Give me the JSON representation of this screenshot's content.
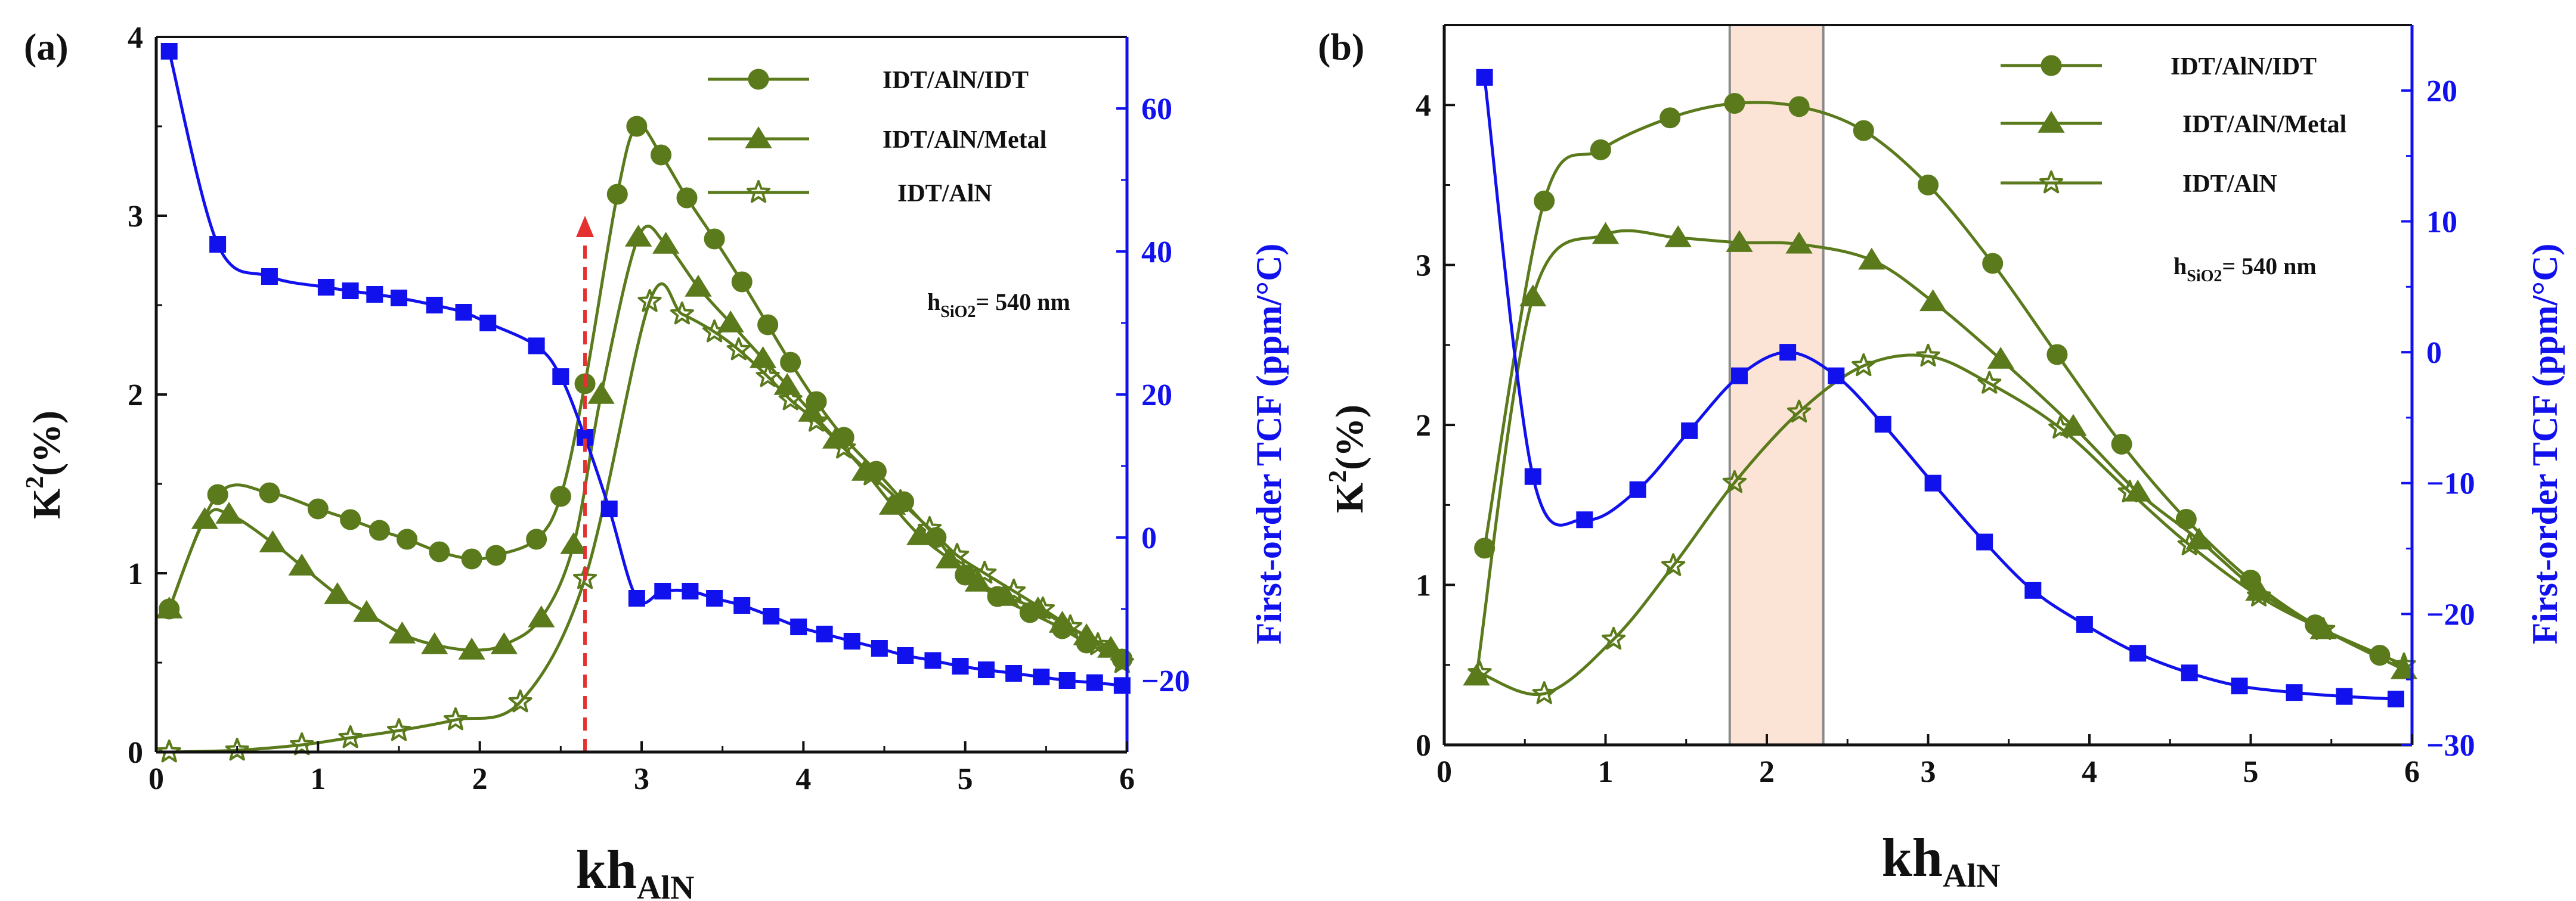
{
  "colors": {
    "green": "#5a7a1c",
    "blue": "#1111ee",
    "axis": "#111111",
    "arrow": "#e53030",
    "band_fill": "#fbe4d6",
    "band_line": "#8a8a8a"
  },
  "chart_data": [
    {
      "type": "line",
      "panel_label": "(a)",
      "xlabel": "kh",
      "xlabel_sub": "AlN",
      "ylabel": "K",
      "ylabel_sup": "2",
      "ylabel_suffix": "(%)",
      "ylabel_right": "First-order TCF (ppm/°C)",
      "xlim": [
        0,
        6
      ],
      "ylim": [
        0,
        4
      ],
      "ylim_right": [
        -30,
        70
      ],
      "x_ticks": [
        0,
        1,
        2,
        3,
        4,
        5,
        6
      ],
      "y_ticks": [
        0,
        1,
        2,
        3,
        4
      ],
      "y_ticks_right": [
        -20,
        0,
        20,
        40,
        60
      ],
      "x_tick_labels": [
        "0",
        "1",
        "2",
        "3",
        "4",
        "5",
        "6"
      ],
      "y_tick_labels": [
        "0",
        "1",
        "2",
        "3",
        "4"
      ],
      "y_tick_labels_right": [
        "−20",
        "0",
        "20",
        "40",
        "60"
      ],
      "annotation": {
        "text": "h",
        "sub": "SiO2",
        "suffix": "= 540 nm"
      },
      "arrow": {
        "x": 2.65,
        "y_from": 0,
        "y_to": 3.0
      },
      "series": [
        {
          "name": "IDT/AlN/IDT",
          "marker": "circle",
          "axis": "left",
          "x": [
            0.08,
            0.38,
            0.7,
            1.0,
            1.2,
            1.38,
            1.55,
            1.75,
            1.95,
            2.1,
            2.35,
            2.5,
            2.65,
            2.85,
            2.97,
            3.12,
            3.28,
            3.45,
            3.62,
            3.78,
            3.92,
            4.08,
            4.25,
            4.45,
            4.62,
            4.82,
            5.0,
            5.2,
            5.4,
            5.6,
            5.75,
            5.97
          ],
          "y": [
            0.8,
            1.44,
            1.45,
            1.36,
            1.3,
            1.24,
            1.19,
            1.12,
            1.08,
            1.1,
            1.19,
            1.43,
            2.06,
            3.12,
            3.5,
            3.34,
            3.1,
            2.87,
            2.63,
            2.39,
            2.18,
            1.96,
            1.76,
            1.57,
            1.4,
            1.2,
            0.99,
            0.87,
            0.78,
            0.69,
            0.61,
            0.52
          ]
        },
        {
          "name": "IDT/AlN/Metal",
          "marker": "triangle",
          "axis": "left",
          "x": [
            0.08,
            0.3,
            0.45,
            0.72,
            0.9,
            1.12,
            1.3,
            1.52,
            1.72,
            1.95,
            2.15,
            2.38,
            2.58,
            2.75,
            2.98,
            3.15,
            3.35,
            3.55,
            3.75,
            3.9,
            4.05,
            4.2,
            4.38,
            4.55,
            4.72,
            4.9,
            5.08,
            5.25,
            5.45,
            5.6,
            5.75,
            5.9
          ],
          "y": [
            0.8,
            1.3,
            1.33,
            1.17,
            1.04,
            0.88,
            0.78,
            0.66,
            0.6,
            0.57,
            0.6,
            0.75,
            1.16,
            2.0,
            2.88,
            2.84,
            2.6,
            2.4,
            2.2,
            2.05,
            1.9,
            1.75,
            1.57,
            1.38,
            1.21,
            1.08,
            0.95,
            0.87,
            0.8,
            0.72,
            0.65,
            0.58
          ]
        },
        {
          "name": "IDT/AlN",
          "marker": "star",
          "axis": "left",
          "x": [
            0.08,
            0.5,
            0.9,
            1.2,
            1.5,
            1.85,
            2.25,
            2.65,
            3.05,
            3.25,
            3.45,
            3.6,
            3.78,
            3.92,
            4.08,
            4.25,
            4.42,
            4.6,
            4.78,
            4.95,
            5.12,
            5.3,
            5.48,
            5.65,
            5.82,
            5.97
          ],
          "y": [
            0.0,
            0.01,
            0.04,
            0.08,
            0.12,
            0.18,
            0.28,
            0.97,
            2.52,
            2.45,
            2.35,
            2.25,
            2.1,
            1.97,
            1.85,
            1.7,
            1.55,
            1.4,
            1.25,
            1.1,
            1.0,
            0.9,
            0.8,
            0.7,
            0.6,
            0.5
          ]
        },
        {
          "name": "First-order TCF",
          "marker": "square",
          "axis": "right",
          "x": [
            0.08,
            0.38,
            0.7,
            1.05,
            1.2,
            1.35,
            1.5,
            1.72,
            1.9,
            2.05,
            2.35,
            2.5,
            2.65,
            2.8,
            2.97,
            3.13,
            3.3,
            3.45,
            3.62,
            3.8,
            3.97,
            4.13,
            4.3,
            4.47,
            4.63,
            4.8,
            4.97,
            5.13,
            5.3,
            5.47,
            5.63,
            5.8,
            5.97
          ],
          "y": [
            68,
            41,
            36.5,
            35,
            34.5,
            34,
            33.5,
            32.5,
            31.5,
            30,
            26.8,
            22.5,
            14,
            4,
            -8.5,
            -7.5,
            -7.5,
            -8.5,
            -9.5,
            -11,
            -12.5,
            -13.5,
            -14.5,
            -15.5,
            -16.5,
            -17.2,
            -18,
            -18.5,
            -19,
            -19.5,
            -20,
            -20.3,
            -20.7
          ]
        }
      ]
    },
    {
      "type": "line",
      "panel_label": "(b)",
      "xlabel": "kh",
      "xlabel_sub": "AlN",
      "ylabel": "K",
      "ylabel_sup": "2",
      "ylabel_suffix": "(%)",
      "ylabel_right": "First-order TCF (ppm/°C)",
      "xlim": [
        0,
        6
      ],
      "ylim": [
        0,
        4.5
      ],
      "ylim_right": [
        -30,
        25
      ],
      "x_ticks": [
        0,
        1,
        2,
        3,
        4,
        5,
        6
      ],
      "y_ticks": [
        0,
        1,
        2,
        3,
        4
      ],
      "y_ticks_right": [
        -30,
        -20,
        -10,
        0,
        10,
        20
      ],
      "x_tick_labels": [
        "0",
        "1",
        "2",
        "3",
        "4",
        "5",
        "6"
      ],
      "y_tick_labels": [
        "0",
        "1",
        "2",
        "3",
        "4"
      ],
      "y_tick_labels_right": [
        "−30",
        "−20",
        "−10",
        "0",
        "10",
        "20"
      ],
      "annotation": {
        "text": "h",
        "sub": "SiO2",
        "suffix": "= 540 nm"
      },
      "band": {
        "x_from": 1.77,
        "x_to": 2.35
      },
      "series": [
        {
          "name": "IDT/AlN/IDT",
          "marker": "circle",
          "axis": "left",
          "x": [
            0.25,
            0.62,
            0.97,
            1.4,
            1.8,
            2.2,
            2.6,
            3.0,
            3.4,
            3.8,
            4.2,
            4.6,
            5.0,
            5.4,
            5.8
          ],
          "y": [
            1.23,
            3.4,
            3.72,
            3.92,
            4.01,
            3.99,
            3.84,
            3.5,
            3.01,
            2.44,
            1.88,
            1.41,
            1.03,
            0.75,
            0.56
          ]
        },
        {
          "name": "IDT/AlN/Metal",
          "marker": "triangle",
          "axis": "left",
          "x": [
            0.2,
            0.55,
            1.0,
            1.45,
            1.83,
            2.2,
            2.65,
            3.03,
            3.45,
            3.9,
            4.3,
            4.68,
            5.05,
            5.45,
            5.95
          ],
          "y": [
            0.43,
            2.8,
            3.19,
            3.17,
            3.14,
            3.13,
            3.03,
            2.77,
            2.41,
            1.99,
            1.58,
            1.28,
            0.96,
            0.72,
            0.47
          ]
        },
        {
          "name": "IDT/AlN",
          "marker": "star",
          "axis": "left",
          "x": [
            0.22,
            0.62,
            1.05,
            1.42,
            1.8,
            2.2,
            2.6,
            3.0,
            3.38,
            3.82,
            4.25,
            4.62,
            5.05,
            5.45,
            5.95
          ],
          "y": [
            0.45,
            0.32,
            0.66,
            1.12,
            1.64,
            2.08,
            2.37,
            2.43,
            2.26,
            1.98,
            1.58,
            1.25,
            0.93,
            0.72,
            0.5
          ]
        },
        {
          "name": "First-order TCF",
          "marker": "square",
          "axis": "right",
          "x": [
            0.25,
            0.55,
            0.87,
            1.2,
            1.52,
            1.83,
            2.13,
            2.43,
            2.72,
            3.03,
            3.35,
            3.65,
            3.97,
            4.3,
            4.62,
            4.93,
            5.27,
            5.58,
            5.9
          ],
          "y": [
            21,
            -9.5,
            -12.8,
            -10.5,
            -6,
            -1.8,
            0,
            -1.8,
            -5.5,
            -10,
            -14.5,
            -18.2,
            -20.8,
            -23,
            -24.5,
            -25.5,
            -26,
            -26.3,
            -26.5
          ]
        }
      ]
    }
  ]
}
